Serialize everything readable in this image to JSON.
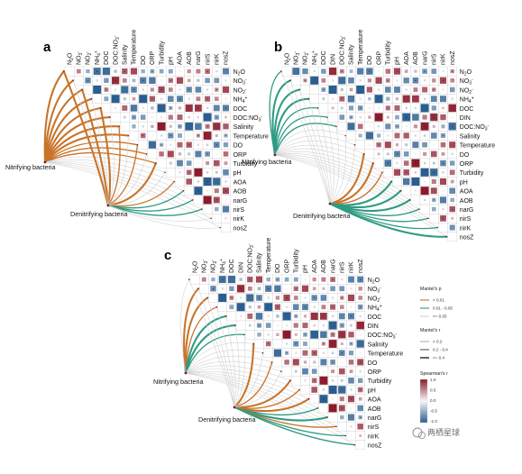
{
  "variables": [
    "N2O",
    "NO3-",
    "NO2-",
    "NH4+",
    "DOC",
    "DIN",
    "DOC:NO3-",
    "Salinity",
    "Temperature",
    "DO",
    "ORP",
    "Turbidity",
    "pH",
    "AOA",
    "AOB",
    "narG",
    "nirS",
    "nirK",
    "nosZ"
  ],
  "variable_labels": {
    "N2O": {
      "base": "N",
      "sub": "2",
      "rest": "O"
    },
    "NO3-": {
      "base": "NO",
      "sub": "3",
      "sup": "-"
    },
    "NO2-": {
      "base": "NO",
      "sub": "2",
      "sup": "-"
    },
    "NH4+": {
      "base": "NH",
      "sub": "4",
      "sup": "+"
    },
    "DOC": {
      "base": "DOC"
    },
    "DIN": {
      "base": "DIN"
    },
    "DOC:NO3-": {
      "base": "DOC:NO",
      "sub": "3",
      "sup": "-"
    },
    "Salinity": {
      "base": "Salinity"
    },
    "Temperature": {
      "base": "Temperature"
    },
    "DO": {
      "base": "DO"
    },
    "ORP": {
      "base": "ORP"
    },
    "Turbidity": {
      "base": "Turbidity"
    },
    "pH": {
      "base": "pH"
    },
    "AOA": {
      "base": "AOA"
    },
    "AOB": {
      "base": "AOB"
    },
    "narG": {
      "base": "narG"
    },
    "nirS": {
      "base": "nirS"
    },
    "nirK": {
      "base": "nirK"
    },
    "nosZ": {
      "base": "nosZ"
    }
  },
  "panel_a_order": [
    "N2O",
    "NO3-",
    "NO2-",
    "NH4+",
    "DOC",
    "DOC:NO3-",
    "Salinity",
    "Temperature",
    "DO",
    "ORP",
    "Turbidity",
    "pH",
    "AOA",
    "AOB",
    "narG",
    "nirS",
    "nirK",
    "nosZ"
  ],
  "panels": [
    {
      "id": "a",
      "letter": "a",
      "groups": [
        "Nitrifying bacteria",
        "Denitrifying bacteria"
      ]
    },
    {
      "id": "b",
      "letter": "b",
      "groups": [
        "Nitrifying bacteria",
        "Denitrifying bacteria"
      ]
    },
    {
      "id": "c",
      "letter": "c",
      "groups": [
        "Nitrifying bacteria",
        "Denitrifying bacteria"
      ]
    }
  ],
  "legend": {
    "mantel_p_title": "Mantel's p",
    "mantel_p_items": [
      "< 0.01",
      "0.01 - 0.05",
      ">= 0.05"
    ],
    "mantel_p_colors": [
      "#c8742a",
      "#2e9b83",
      "#d2d2d2"
    ],
    "mantel_r_title": "Mantel's r",
    "mantel_r_items": [
      "< 0.2",
      "0.2 - 0.4",
      ">= 0.4"
    ],
    "spearman_title": "Spearman's r",
    "spearman_ticks": [
      "1.0",
      "0.5",
      "0.0",
      "-0.5",
      "-1.0"
    ],
    "colors": {
      "positive": "#8b1a2c",
      "neutral": "#f7f7f7",
      "negative": "#2a5e90"
    }
  },
  "watermark": "两栖星球"
}
